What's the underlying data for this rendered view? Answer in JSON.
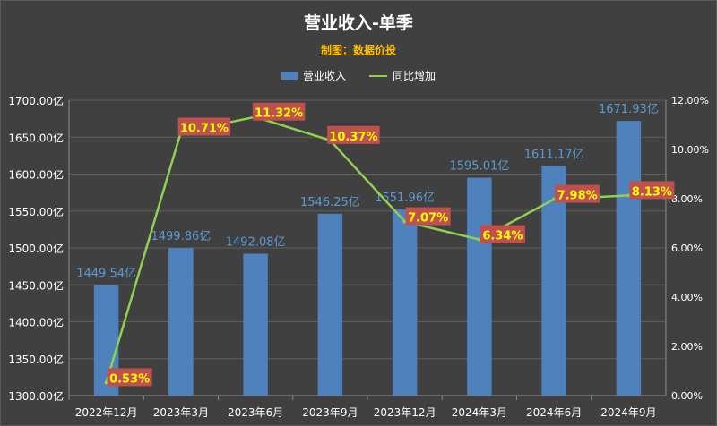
{
  "title": "营业收入-单季",
  "subtitle": "制图：数据价投",
  "legend": {
    "bar": "营业收入",
    "line": "同比增加"
  },
  "colors": {
    "bar": "#4f81bd",
    "line": "#92d050",
    "bar_label": "#5b9bd5",
    "pct_label_bg": "#c0504d",
    "pct_label_text": "#ffff00",
    "background": "#404040",
    "grid": "#5e5e5e"
  },
  "chart_data": {
    "type": "bar+line",
    "categories": [
      "2022年12月",
      "2023年3月",
      "2023年6月",
      "2023年9月",
      "2023年12月",
      "2024年3月",
      "2024年6月",
      "2024年9月"
    ],
    "series": [
      {
        "name": "营业收入",
        "type": "bar",
        "axis": "left",
        "values": [
          1449.54,
          1499.86,
          1492.08,
          1546.25,
          1551.96,
          1595.01,
          1611.17,
          1671.93
        ],
        "labels": [
          "1449.54亿",
          "1499.86亿",
          "1492.08亿",
          "1546.25亿",
          "1551.96亿",
          "1595.01亿",
          "1611.17亿",
          "1671.93亿"
        ]
      },
      {
        "name": "同比增加",
        "type": "line",
        "axis": "right",
        "values": [
          0.53,
          10.71,
          11.32,
          10.37,
          7.07,
          6.34,
          7.98,
          8.13
        ],
        "labels": [
          "0.53%",
          "10.71%",
          "11.32%",
          "10.37%",
          "7.07%",
          "6.34%",
          "7.98%",
          "8.13%"
        ]
      }
    ],
    "y_left": {
      "min": 1300,
      "max": 1700,
      "step": 50,
      "ticks": [
        "1300.00亿",
        "1350.00亿",
        "1400.00亿",
        "1450.00亿",
        "1500.00亿",
        "1550.00亿",
        "1600.00亿",
        "1650.00亿",
        "1700.00亿"
      ]
    },
    "y_right": {
      "min": 0,
      "max": 12,
      "step": 2,
      "ticks": [
        "0.00%",
        "2.00%",
        "4.00%",
        "6.00%",
        "8.00%",
        "10.00%",
        "12.00%"
      ]
    },
    "grid": true,
    "legend_position": "top"
  }
}
